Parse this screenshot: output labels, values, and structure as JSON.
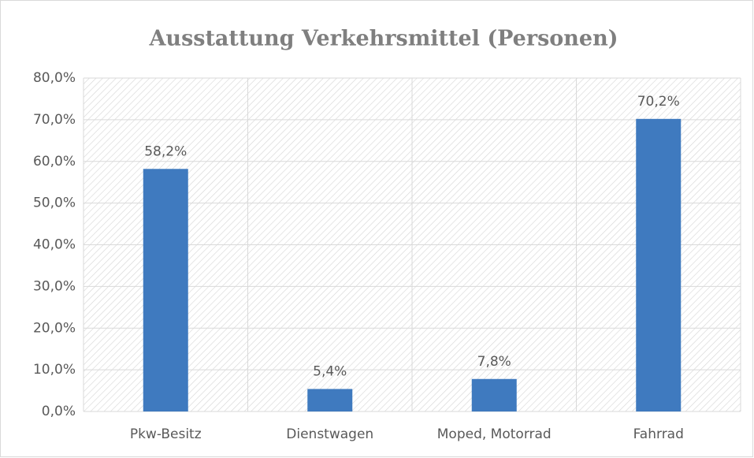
{
  "chart_data": {
    "type": "bar",
    "title": "Ausstattung Verkehrsmittel (Personen)",
    "categories": [
      "Pkw-Besitz",
      "Dienstwagen",
      "Moped, Motorrad",
      "Fahrrad"
    ],
    "values": [
      58.2,
      5.4,
      7.8,
      70.2
    ],
    "value_labels": [
      "58,2%",
      "5,4%",
      "7,8%",
      "70,2%"
    ],
    "color": "#3f7abf",
    "ylim": [
      0,
      80
    ],
    "yticks": [
      {
        "value": 0,
        "label": "0,0%"
      },
      {
        "value": 10,
        "label": "10,0%"
      },
      {
        "value": 20,
        "label": "20,0%"
      },
      {
        "value": 30,
        "label": "30,0%"
      },
      {
        "value": 40,
        "label": "40,0%"
      },
      {
        "value": 50,
        "label": "50,0%"
      },
      {
        "value": 60,
        "label": "60,0%"
      },
      {
        "value": 70,
        "label": "70,0%"
      },
      {
        "value": 80,
        "label": "80,0%"
      }
    ],
    "grid": true
  }
}
